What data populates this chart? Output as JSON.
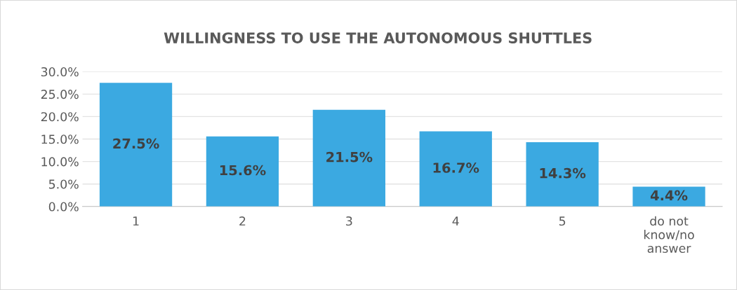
{
  "chart_data": {
    "type": "bar",
    "title": "WILLINGNESS TO USE THE AUTONOMOUS SHUTTLES",
    "categories": [
      "1",
      "2",
      "3",
      "4",
      "5",
      "do not\nknow/no\nanswer"
    ],
    "values": [
      27.5,
      15.6,
      21.5,
      16.7,
      14.3,
      4.4
    ],
    "value_labels": [
      "27.5%",
      "15.6%",
      "21.5%",
      "16.7%",
      "14.3%",
      "4.4%"
    ],
    "color": "#3ba9e1",
    "ylim": [
      0,
      30
    ],
    "yticks": [
      {
        "value": 0,
        "label": "0.0%"
      },
      {
        "value": 5,
        "label": "5.0%"
      },
      {
        "value": 10,
        "label": "10.0%"
      },
      {
        "value": 15,
        "label": "15.0%"
      },
      {
        "value": 20,
        "label": "20.0%"
      },
      {
        "value": 25,
        "label": "25.0%"
      },
      {
        "value": 30,
        "label": "30.0%"
      }
    ],
    "grid": "y"
  }
}
